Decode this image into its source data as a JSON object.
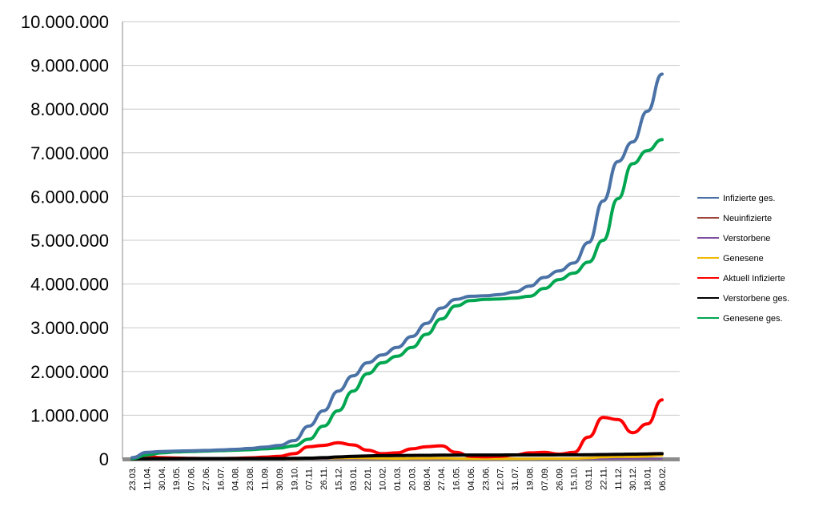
{
  "chart_data": {
    "type": "line",
    "title": "",
    "xlabel": "",
    "ylabel": "",
    "ylim": [
      0,
      10000000
    ],
    "y_ticks": [
      0,
      1000000,
      2000000,
      3000000,
      4000000,
      5000000,
      6000000,
      7000000,
      8000000,
      9000000,
      10000000
    ],
    "y_tick_labels": [
      "0",
      "1.000.000",
      "2.000.000",
      "3.000.000",
      "4.000.000",
      "5.000.000",
      "6.000.000",
      "7.000.000",
      "8.000.000",
      "9.000.000",
      "10.000.000"
    ],
    "x_tick_labels": [
      "23.03.",
      "11.04.",
      "30.04.",
      "19.05.",
      "07.06.",
      "27.06.",
      "16.07.",
      "04.08.",
      "23.08.",
      "11.09.",
      "30.09.",
      "19.10.",
      "07.11.",
      "26.11.",
      "15.12.",
      "03.01.",
      "22.01.",
      "10.02.",
      "01.03.",
      "20.03.",
      "08.04.",
      "27.04.",
      "16.05.",
      "04.06.",
      "23.06.",
      "12.07.",
      "31.07.",
      "19.08.",
      "07.09.",
      "26.09.",
      "15.10.",
      "03.11.",
      "22.11.",
      "11.12.",
      "30.12.",
      "18.01.",
      "06.02."
    ],
    "grid": "horizontal",
    "legend_position": "right",
    "series": [
      {
        "name": "Infizierte ges.",
        "color": "#4a72a6",
        "values": [
          30000,
          150000,
          170000,
          180000,
          185000,
          195000,
          205000,
          220000,
          240000,
          270000,
          310000,
          420000,
          750000,
          1100000,
          1550000,
          1900000,
          2200000,
          2380000,
          2550000,
          2800000,
          3100000,
          3450000,
          3650000,
          3720000,
          3730000,
          3760000,
          3820000,
          3950000,
          4150000,
          4300000,
          4480000,
          4950000,
          5900000,
          6800000,
          7250000,
          7950000,
          8800000
        ]
      },
      {
        "name": "Neuinfizierte",
        "color": "#a0483c",
        "values": [
          3000,
          2000,
          1000,
          500,
          500,
          500,
          500,
          1000,
          1500,
          2000,
          4000,
          10000,
          20000,
          20000,
          25000,
          22000,
          15000,
          10000,
          10000,
          15000,
          18000,
          15000,
          6000,
          3000,
          3000,
          3000,
          5000,
          8000,
          10000,
          8000,
          10000,
          30000,
          50000,
          60000,
          50000,
          90000,
          120000
        ]
      },
      {
        "name": "Verstorbene",
        "color": "#7f4fa0",
        "values": [
          100,
          200,
          200,
          100,
          100,
          100,
          100,
          100,
          100,
          100,
          200,
          500,
          800,
          1000,
          1200,
          1200,
          900,
          600,
          400,
          500,
          500,
          400,
          200,
          100,
          100,
          100,
          100,
          100,
          200,
          200,
          300,
          600,
          1000,
          1300,
          1200,
          1400,
          1800
        ]
      },
      {
        "name": "Genesene",
        "color": "#f2b900",
        "values": [
          2000,
          3000,
          2000,
          1000,
          500,
          500,
          500,
          800,
          1200,
          1500,
          2500,
          5000,
          12000,
          18000,
          20000,
          22000,
          18000,
          12000,
          10000,
          12000,
          15000,
          16000,
          10000,
          5000,
          3000,
          3000,
          4000,
          6000,
          9000,
          9000,
          9000,
          20000,
          40000,
          50000,
          50000,
          60000,
          80000
        ]
      },
      {
        "name": "Aktuell Infizierte",
        "color": "#ff0000",
        "values": [
          20000,
          60000,
          30000,
          20000,
          12000,
          10000,
          10000,
          15000,
          25000,
          40000,
          60000,
          120000,
          280000,
          310000,
          370000,
          320000,
          200000,
          120000,
          140000,
          230000,
          280000,
          300000,
          150000,
          60000,
          50000,
          60000,
          90000,
          140000,
          150000,
          110000,
          150000,
          500000,
          950000,
          900000,
          600000,
          800000,
          1350000
        ]
      },
      {
        "name": "Verstorbene ges.",
        "color": "#000000",
        "values": [
          1000,
          5000,
          7000,
          8000,
          8500,
          9000,
          9200,
          9300,
          9400,
          9500,
          10000,
          12000,
          18000,
          30000,
          45000,
          60000,
          70000,
          75000,
          77000,
          80000,
          83000,
          86000,
          88000,
          89000,
          90000,
          90500,
          91000,
          91500,
          92000,
          93000,
          94000,
          95000,
          100000,
          105000,
          110000,
          115000,
          120000
        ]
      },
      {
        "name": "Genesene ges.",
        "color": "#00a650",
        "values": [
          10000,
          90000,
          140000,
          160000,
          170000,
          180000,
          190000,
          200000,
          210000,
          230000,
          250000,
          300000,
          450000,
          750000,
          1100000,
          1550000,
          1950000,
          2200000,
          2350000,
          2550000,
          2850000,
          3200000,
          3500000,
          3620000,
          3650000,
          3660000,
          3680000,
          3720000,
          3900000,
          4100000,
          4250000,
          4500000,
          5000000,
          5950000,
          6750000,
          7050000,
          7300000
        ]
      }
    ]
  }
}
